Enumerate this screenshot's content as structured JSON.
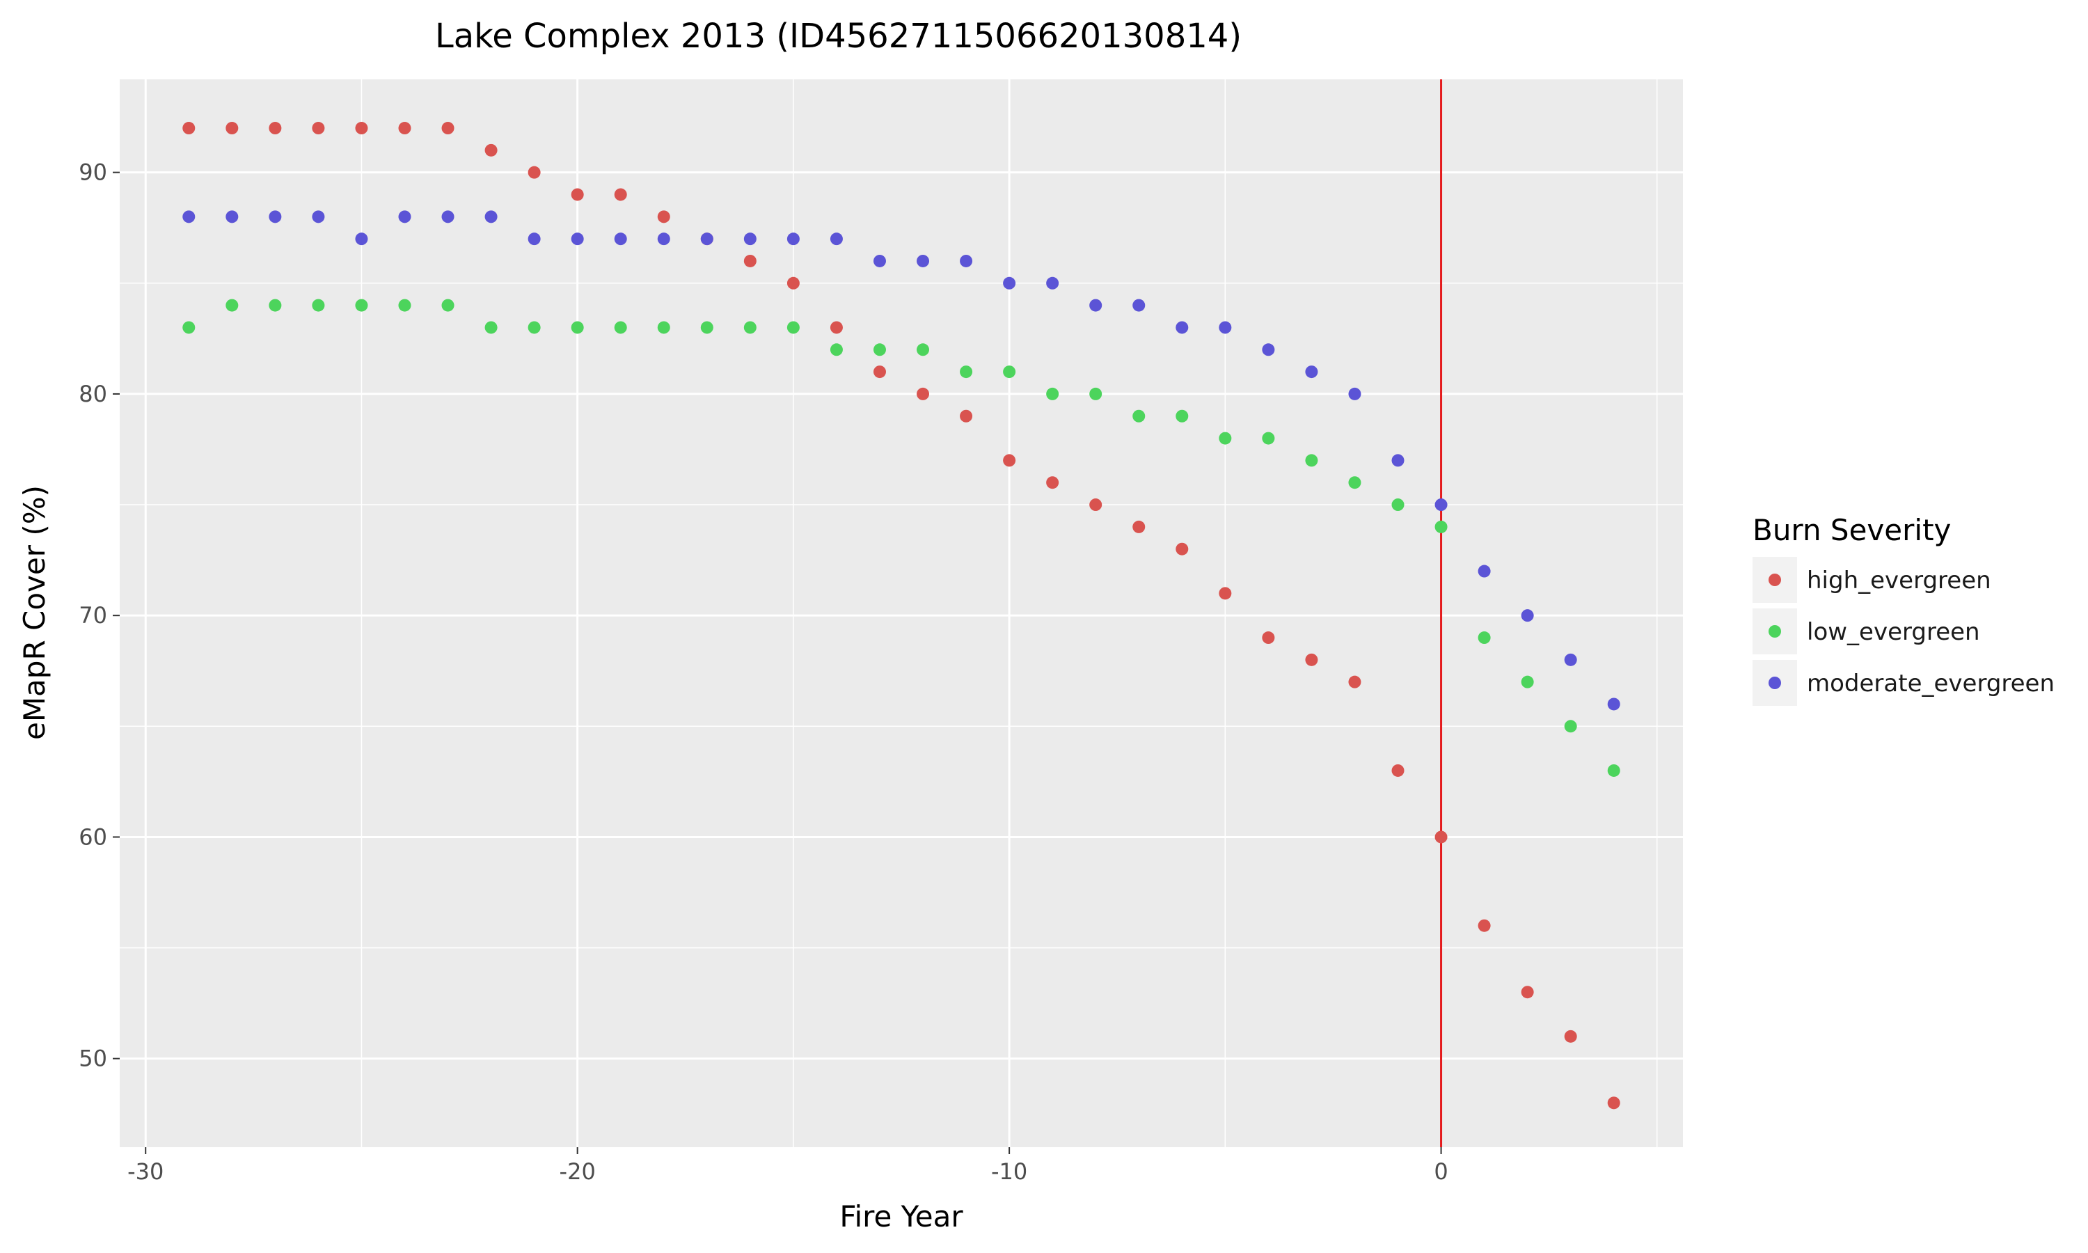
{
  "chart_data": {
    "type": "scatter",
    "title": "Lake Complex 2013 (ID4562711506620130814)",
    "xlabel": "Fire Year",
    "ylabel": "eMapR Cover (%)",
    "xlim": [
      -30.6,
      5.6
    ],
    "ylim": [
      46.0,
      94.2
    ],
    "xticks": [
      -30,
      -20,
      -10,
      0
    ],
    "yticks": [
      50,
      60,
      70,
      80,
      90
    ],
    "grid": true,
    "reference_line": {
      "x": 0,
      "color": "#e41a1c"
    },
    "legend": {
      "title": "Burn Severity",
      "position": "right"
    },
    "series": [
      {
        "name": "high_evergreen",
        "color": "#d9534f",
        "x": [
          -29,
          -28,
          -27,
          -26,
          -25,
          -24,
          -23,
          -22,
          -21,
          -20,
          -19,
          -18,
          -17,
          -16,
          -15,
          -14,
          -13,
          -12,
          -11,
          -10,
          -9,
          -8,
          -7,
          -6,
          -5,
          -4,
          -3,
          -2,
          -1,
          0,
          1,
          2,
          3,
          4
        ],
        "y": [
          92,
          92,
          92,
          92,
          92,
          92,
          92,
          91,
          90,
          89,
          89,
          88,
          87,
          86,
          85,
          83,
          81,
          80,
          79,
          77,
          76,
          75,
          74,
          73,
          71,
          69,
          68,
          67,
          63,
          60,
          56,
          53,
          51,
          48
        ]
      },
      {
        "name": "low_evergreen",
        "color": "#4cd45c",
        "x": [
          -29,
          -28,
          -27,
          -26,
          -25,
          -24,
          -23,
          -22,
          -21,
          -20,
          -19,
          -18,
          -17,
          -16,
          -15,
          -14,
          -13,
          -12,
          -11,
          -10,
          -9,
          -8,
          -7,
          -6,
          -5,
          -4,
          -3,
          -2,
          -1,
          0,
          1,
          2,
          3,
          4
        ],
        "y": [
          83,
          84,
          84,
          84,
          84,
          84,
          84,
          83,
          83,
          83,
          83,
          83,
          83,
          83,
          83,
          82,
          82,
          82,
          81,
          81,
          80,
          80,
          79,
          79,
          78,
          78,
          77,
          76,
          75,
          74,
          69,
          67,
          65,
          63
        ]
      },
      {
        "name": "moderate_evergreen",
        "color": "#5b54d6",
        "x": [
          -29,
          -28,
          -27,
          -26,
          -25,
          -24,
          -23,
          -22,
          -21,
          -20,
          -19,
          -18,
          -17,
          -16,
          -15,
          -14,
          -13,
          -12,
          -11,
          -10,
          -9,
          -8,
          -7,
          -6,
          -5,
          -4,
          -3,
          -2,
          -1,
          0,
          1,
          2,
          3,
          4
        ],
        "y": [
          88,
          88,
          88,
          88,
          87,
          88,
          88,
          88,
          87,
          87,
          87,
          87,
          87,
          87,
          87,
          87,
          86,
          86,
          86,
          85,
          85,
          84,
          84,
          83,
          83,
          82,
          81,
          80,
          77,
          75,
          72,
          70,
          68,
          66
        ]
      }
    ]
  }
}
